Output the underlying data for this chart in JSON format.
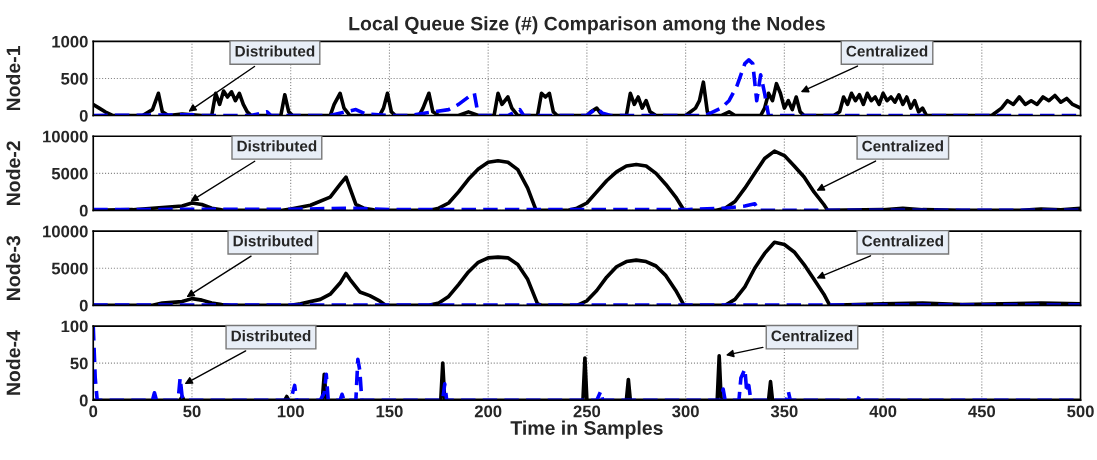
{
  "chart_data": [
    {
      "type": "line",
      "title": "Local Queue Size (#) Comparison among the Nodes",
      "ylabel": "Node-1",
      "xlim": [
        0,
        500
      ],
      "xticks": [
        0,
        50,
        100,
        150,
        200,
        250,
        300,
        350,
        400,
        450,
        500
      ],
      "ylim": [
        0,
        1000
      ],
      "yticks": [
        0,
        500,
        1000
      ],
      "grid": true,
      "tick_labels": "y",
      "series": [
        {
          "color": "#000000",
          "line_style": "solid",
          "x": [
            0,
            3,
            6,
            10,
            25,
            30,
            33,
            35,
            38,
            45,
            55,
            60,
            62,
            64,
            66,
            68,
            70,
            72,
            74,
            76,
            78,
            80,
            95,
            97,
            99,
            101,
            110,
            120,
            122,
            125,
            127,
            130,
            145,
            147,
            149,
            151,
            153,
            165,
            167,
            170,
            172,
            175,
            185,
            190,
            195,
            203,
            205,
            207,
            210,
            212,
            215,
            225,
            227,
            229,
            231,
            233,
            235,
            250,
            252,
            255,
            257,
            260,
            270,
            272,
            274,
            276,
            278,
            280,
            282,
            285,
            300,
            305,
            307,
            309,
            311,
            313,
            318,
            322,
            325,
            338,
            340,
            342,
            344,
            346,
            348,
            350,
            352,
            354,
            356,
            358,
            360,
            375,
            378,
            380,
            382,
            384,
            386,
            388,
            390,
            392,
            394,
            396,
            398,
            400,
            402,
            404,
            406,
            408,
            410,
            412,
            414,
            416,
            418,
            420,
            422,
            455,
            460,
            463,
            466,
            469,
            472,
            475,
            478,
            481,
            484,
            487,
            490,
            493,
            496,
            500
          ],
          "values": [
            150,
            100,
            50,
            0,
            0,
            80,
            300,
            50,
            0,
            20,
            0,
            0,
            300,
            150,
            330,
            250,
            320,
            200,
            300,
            150,
            50,
            0,
            0,
            280,
            50,
            0,
            0,
            0,
            150,
            300,
            100,
            0,
            0,
            100,
            300,
            50,
            0,
            0,
            100,
            300,
            50,
            0,
            0,
            50,
            0,
            0,
            300,
            150,
            250,
            100,
            0,
            0,
            300,
            250,
            300,
            50,
            0,
            0,
            50,
            100,
            30,
            0,
            0,
            300,
            150,
            250,
            100,
            200,
            50,
            0,
            0,
            100,
            200,
            450,
            50,
            0,
            0,
            50,
            0,
            0,
            100,
            300,
            200,
            430,
            300,
            100,
            200,
            80,
            250,
            50,
            0,
            0,
            50,
            250,
            150,
            300,
            200,
            280,
            150,
            300,
            200,
            250,
            150,
            300,
            200,
            250,
            180,
            280,
            150,
            250,
            100,
            200,
            50,
            100,
            0,
            0,
            100,
            200,
            150,
            250,
            150,
            200,
            150,
            250,
            200,
            270,
            180,
            230,
            150,
            100
          ]
        },
        {
          "color": "#0000ff",
          "line_style": "dashed",
          "x": [
            0,
            50,
            55,
            80,
            88,
            90,
            120,
            128,
            133,
            138,
            150,
            160,
            170,
            180,
            185,
            190,
            193,
            195,
            210,
            216,
            218,
            250,
            255,
            258,
            262,
            310,
            318,
            322,
            326,
            330,
            332,
            334,
            336,
            338,
            340,
            342,
            500
          ],
          "values": [
            0,
            10,
            0,
            0,
            50,
            0,
            0,
            50,
            80,
            20,
            0,
            0,
            40,
            80,
            150,
            250,
            300,
            0,
            0,
            80,
            0,
            0,
            100,
            30,
            0,
            0,
            100,
            200,
            400,
            700,
            750,
            700,
            200,
            550,
            300,
            0,
            0
          ]
        }
      ],
      "annotations": [
        {
          "text": "Distributed",
          "x": 47,
          "y": 30
        },
        {
          "text": "Centralized",
          "x": 357,
          "y": 300
        }
      ]
    },
    {
      "type": "line",
      "ylabel": "Node-2",
      "xlim": [
        0,
        500
      ],
      "xticks": [
        0,
        50,
        100,
        150,
        200,
        250,
        300,
        350,
        400,
        450,
        500
      ],
      "ylim": [
        0,
        10000
      ],
      "yticks": [
        0,
        5000,
        10000
      ],
      "grid": true,
      "tick_labels": "y",
      "series": [
        {
          "color": "#000000",
          "line_style": "solid",
          "x": [
            0,
            20,
            30,
            40,
            45,
            50,
            55,
            60,
            65,
            70,
            95,
            100,
            110,
            120,
            125,
            128,
            130,
            133,
            137,
            142,
            150,
            170,
            175,
            180,
            185,
            190,
            195,
            200,
            205,
            210,
            215,
            220,
            224,
            226,
            240,
            245,
            250,
            255,
            260,
            265,
            270,
            275,
            280,
            285,
            290,
            295,
            299,
            300,
            315,
            320,
            325,
            330,
            335,
            340,
            345,
            350,
            355,
            360,
            365,
            370,
            372,
            400,
            410,
            420,
            440,
            470,
            480,
            490,
            500
          ],
          "values": [
            0,
            100,
            300,
            500,
            600,
            1000,
            800,
            300,
            100,
            0,
            0,
            200,
            700,
            1800,
            3500,
            4500,
            3000,
            800,
            300,
            100,
            0,
            0,
            300,
            1000,
            2500,
            4200,
            5600,
            6500,
            6700,
            6500,
            5500,
            3000,
            200,
            0,
            0,
            300,
            1000,
            2500,
            4000,
            5200,
            6000,
            6200,
            6000,
            5000,
            3500,
            1800,
            100,
            0,
            0,
            300,
            1200,
            3000,
            5000,
            7000,
            8000,
            7400,
            6000,
            4500,
            2500,
            800,
            0,
            100,
            300,
            100,
            0,
            0,
            200,
            100,
            300
          ]
        },
        {
          "color": "#0000ff",
          "line_style": "dashed",
          "x": [
            0,
            50,
            100,
            130,
            150,
            200,
            250,
            300,
            320,
            330,
            335,
            337,
            500
          ],
          "values": [
            100,
            150,
            150,
            300,
            100,
            100,
            100,
            100,
            300,
            600,
            900,
            0,
            0
          ]
        }
      ],
      "annotations": [
        {
          "text": "Distributed",
          "x": 48,
          "y": 1000
        },
        {
          "text": "Centralized",
          "x": 365,
          "y": 2500
        }
      ]
    },
    {
      "type": "line",
      "ylabel": "Node-3",
      "xlim": [
        0,
        500
      ],
      "xticks": [
        0,
        50,
        100,
        150,
        200,
        250,
        300,
        350,
        400,
        450,
        500
      ],
      "ylim": [
        0,
        10000
      ],
      "yticks": [
        0,
        5000,
        10000
      ],
      "grid": true,
      "tick_labels": "y",
      "series": [
        {
          "color": "#000000",
          "line_style": "solid",
          "x": [
            0,
            30,
            35,
            45,
            50,
            55,
            60,
            65,
            70,
            100,
            105,
            115,
            120,
            125,
            128,
            130,
            135,
            140,
            145,
            148,
            170,
            175,
            180,
            185,
            190,
            195,
            200,
            205,
            210,
            215,
            220,
            225,
            227,
            245,
            250,
            255,
            260,
            265,
            270,
            275,
            280,
            285,
            290,
            295,
            299,
            300,
            320,
            325,
            330,
            335,
            340,
            345,
            350,
            355,
            360,
            365,
            370,
            373,
            400,
            420,
            440,
            460,
            480,
            500
          ],
          "values": [
            0,
            0,
            300,
            500,
            900,
            700,
            300,
            100,
            0,
            0,
            200,
            800,
            1500,
            3000,
            4300,
            3500,
            1800,
            1300,
            600,
            0,
            0,
            300,
            1200,
            2800,
            4500,
            5800,
            6400,
            6500,
            6400,
            5500,
            3500,
            200,
            0,
            0,
            600,
            2000,
            3800,
            5200,
            5900,
            6100,
            5900,
            5300,
            4000,
            2000,
            100,
            0,
            0,
            800,
            2500,
            5000,
            7000,
            8500,
            8200,
            7200,
            5500,
            3500,
            1500,
            0,
            200,
            300,
            100,
            200,
            300,
            200
          ]
        },
        {
          "color": "#0000ff",
          "line_style": "dashed",
          "x": [
            0,
            500
          ],
          "values": [
            50,
            50
          ]
        }
      ],
      "annotations": [
        {
          "text": "Distributed",
          "x": 46,
          "y": 900
        },
        {
          "text": "Centralized",
          "x": 365,
          "y": 3500
        }
      ]
    },
    {
      "type": "line",
      "ylabel": "Node-4",
      "xlabel": "Time in Samples",
      "xlim": [
        0,
        500
      ],
      "xticks": [
        0,
        50,
        100,
        150,
        200,
        250,
        300,
        350,
        400,
        450,
        500
      ],
      "ylim": [
        0,
        100
      ],
      "yticks": [
        0,
        50,
        100
      ],
      "grid": true,
      "series": [
        {
          "color": "#000000",
          "line_style": "solid",
          "x": [
            0,
            44,
            45,
            46,
            97,
            98,
            99,
            116,
            117,
            118,
            176,
            177,
            178,
            248,
            249,
            250,
            270,
            271,
            272,
            316,
            317,
            318,
            342,
            343,
            344,
            500
          ],
          "values": [
            0,
            0,
            5,
            0,
            0,
            5,
            0,
            0,
            35,
            0,
            0,
            50,
            0,
            0,
            57,
            0,
            0,
            28,
            0,
            0,
            60,
            0,
            0,
            25,
            0,
            0
          ]
        },
        {
          "color": "#0000ff",
          "line_style": "dashed",
          "x": [
            0,
            1,
            2,
            30,
            31,
            32,
            43,
            44,
            45,
            46,
            100,
            102,
            103,
            115,
            117,
            118,
            119,
            125,
            126,
            127,
            133,
            134,
            135,
            136,
            177,
            178,
            179,
            255,
            257,
            258,
            318,
            319,
            320,
            327,
            328,
            330,
            331,
            332,
            333,
            351,
            352,
            353,
            387,
            388,
            389,
            500
          ],
          "values": [
            100,
            30,
            0,
            0,
            10,
            0,
            0,
            30,
            5,
            0,
            0,
            20,
            0,
            0,
            10,
            35,
            0,
            0,
            8,
            0,
            0,
            55,
            40,
            0,
            0,
            22,
            0,
            0,
            12,
            0,
            0,
            15,
            0,
            0,
            30,
            42,
            10,
            20,
            0,
            0,
            12,
            0,
            0,
            5,
            0,
            0
          ]
        }
      ],
      "annotations": [
        {
          "text": "Distributed",
          "x": 45,
          "y": 20
        },
        {
          "text": "Centralized",
          "x": 319,
          "y": 60
        }
      ]
    }
  ]
}
